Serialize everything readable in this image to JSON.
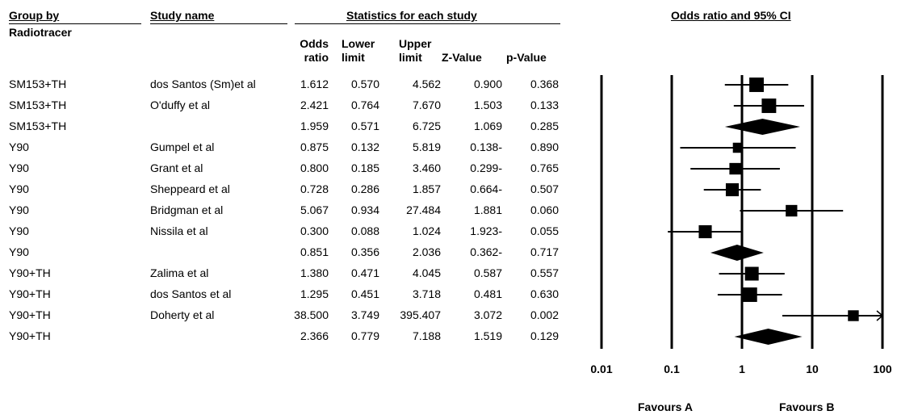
{
  "headers": {
    "group_by": "Group by",
    "radiotracer": "Radiotracer",
    "study_name": "Study name",
    "statistics": "Statistics for each study",
    "odds_ci": "Odds ratio and 95% CI",
    "col_or_1": "Odds",
    "col_or_2": "ratio",
    "col_ll_1": "Lower",
    "col_ll_2": "limit",
    "col_ul_1": "Upper",
    "col_ul_2": "limit",
    "col_z": "Z-Value",
    "col_p": "p-Value"
  },
  "rows": [
    {
      "group": "SM153+TH",
      "study": "dos Santos (Sm)et al",
      "or": "1.612",
      "ll": "0.570",
      "ul": "4.562",
      "z": "0.900",
      "p": "0.368"
    },
    {
      "group": "SM153+TH",
      "study": "O'duffy et al",
      "or": "2.421",
      "ll": "0.764",
      "ul": "7.670",
      "z": "1.503",
      "p": "0.133"
    },
    {
      "group": "SM153+TH",
      "study": "",
      "or": "1.959",
      "ll": "0.571",
      "ul": "6.725",
      "z": "1.069",
      "p": "0.285"
    },
    {
      "group": "Y90",
      "study": "Gumpel et al",
      "or": "0.875",
      "ll": "0.132",
      "ul": "5.819",
      "z": "0.138-",
      "p": "0.890"
    },
    {
      "group": "Y90",
      "study": "Grant et al",
      "or": "0.800",
      "ll": "0.185",
      "ul": "3.460",
      "z": "0.299-",
      "p": "0.765"
    },
    {
      "group": "Y90",
      "study": "Sheppeard et al",
      "or": "0.728",
      "ll": "0.286",
      "ul": "1.857",
      "z": "0.664-",
      "p": "0.507"
    },
    {
      "group": "Y90",
      "study": "Bridgman et al",
      "or": "5.067",
      "ll": "0.934",
      "ul": "27.484",
      "z": "1.881",
      "p": "0.060"
    },
    {
      "group": "Y90",
      "study": "Nissila et al",
      "or": "0.300",
      "ll": "0.088",
      "ul": "1.024",
      "z": "1.923-",
      "p": "0.055"
    },
    {
      "group": "Y90",
      "study": "",
      "or": "0.851",
      "ll": "0.356",
      "ul": "2.036",
      "z": "0.362-",
      "p": "0.717"
    },
    {
      "group": "Y90+TH",
      "study": "Zalima et al",
      "or": "1.380",
      "ll": "0.471",
      "ul": "4.045",
      "z": "0.587",
      "p": "0.557"
    },
    {
      "group": "Y90+TH",
      "study": "dos Santos et al",
      "or": "1.295",
      "ll": "0.451",
      "ul": "3.718",
      "z": "0.481",
      "p": "0.630"
    },
    {
      "group": "Y90+TH",
      "study": "Doherty et al",
      "or": "38.500",
      "ll": "3.749",
      "ul": "395.407",
      "z": "3.072",
      "p": "0.002"
    },
    {
      "group": "Y90+TH",
      "study": "",
      "or": "2.366",
      "ll": "0.779",
      "ul": "7.188",
      "z": "1.519",
      "p": "0.129"
    }
  ],
  "favours": {
    "a": "Favours A",
    "b": "Favours B"
  },
  "chart_data": {
    "type": "forest",
    "title": "Odds ratio and 95% CI",
    "x_scale": "log",
    "xlim": [
      0.01,
      100
    ],
    "x_ticks": [
      0.01,
      0.1,
      1,
      10,
      100
    ],
    "x_tick_labels": [
      "0.01",
      "0.1",
      "1",
      "10",
      "100"
    ],
    "reference_line": 1,
    "series": [
      {
        "label": "dos Santos (Sm)et al",
        "or": 1.612,
        "lower": 0.57,
        "upper": 4.562,
        "kind": "study",
        "weight": 0.55
      },
      {
        "label": "O'duffy et al",
        "or": 2.421,
        "lower": 0.764,
        "upper": 7.67,
        "kind": "study",
        "weight": 0.55
      },
      {
        "label": "SM153+TH",
        "or": 1.959,
        "lower": 0.571,
        "upper": 6.725,
        "kind": "summary"
      },
      {
        "label": "Gumpel et al",
        "or": 0.875,
        "lower": 0.132,
        "upper": 5.819,
        "kind": "study",
        "weight": 0.25
      },
      {
        "label": "Grant et al",
        "or": 0.8,
        "lower": 0.185,
        "upper": 3.46,
        "kind": "study",
        "weight": 0.35
      },
      {
        "label": "Sheppeard et al",
        "or": 0.728,
        "lower": 0.286,
        "upper": 1.857,
        "kind": "study",
        "weight": 0.45
      },
      {
        "label": "Bridgman et al",
        "or": 5.067,
        "lower": 0.934,
        "upper": 27.484,
        "kind": "study",
        "weight": 0.35
      },
      {
        "label": "Nissila et al",
        "or": 0.3,
        "lower": 0.088,
        "upper": 1.024,
        "kind": "study",
        "weight": 0.45
      },
      {
        "label": "Y90",
        "or": 0.851,
        "lower": 0.356,
        "upper": 2.036,
        "kind": "summary"
      },
      {
        "label": "Zalima et al",
        "or": 1.38,
        "lower": 0.471,
        "upper": 4.045,
        "kind": "study",
        "weight": 0.5
      },
      {
        "label": "dos Santos et al",
        "or": 1.295,
        "lower": 0.451,
        "upper": 3.718,
        "kind": "study",
        "weight": 0.55
      },
      {
        "label": "Doherty et al",
        "or": 38.5,
        "lower": 3.749,
        "upper": 395.407,
        "kind": "study",
        "weight": 0.3,
        "clipped_upper": true
      },
      {
        "label": "Y90+TH",
        "or": 2.366,
        "lower": 0.779,
        "upper": 7.188,
        "kind": "summary"
      }
    ]
  }
}
